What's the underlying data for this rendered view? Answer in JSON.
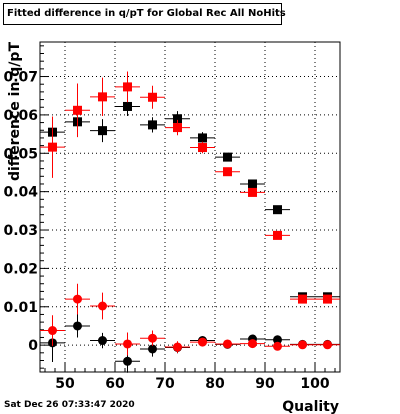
{
  "title": "Fitted difference in q/pT for Global Rec All NoHits",
  "date_stamp": "Sat Dec 26 07:33:47 2020",
  "colors": {
    "series_a": "#000000",
    "series_b": "#ff0000"
  },
  "chart_data": {
    "type": "scatter",
    "title": "Fitted difference in q/pT for Global Rec All NoHits",
    "xlabel": "Quality",
    "ylabel": "difference in q/pT",
    "xlim": [
      45,
      105
    ],
    "ylim": [
      -0.007,
      0.079
    ],
    "x_ticks": [
      50,
      60,
      70,
      80,
      90,
      100
    ],
    "y_ticks": [
      0,
      0.01,
      0.02,
      0.03,
      0.04,
      0.05,
      0.06,
      0.07
    ],
    "y_tick_labels": [
      "0",
      "0.01",
      "0.02",
      "0.03",
      "0.04",
      "0.05",
      "0.06",
      "0.07"
    ],
    "grid": true,
    "series": [
      {
        "marker": "square",
        "color": "#000000",
        "x_err": 2.5,
        "x": [
          47.5,
          52.5,
          57.5,
          62.5,
          67.5,
          72.5,
          77.5,
          82.5,
          87.5,
          92.5,
          97.5,
          102.5
        ],
        "y": [
          0.0555,
          0.0582,
          0.0559,
          0.0622,
          0.0574,
          0.059,
          0.054,
          0.049,
          0.042,
          0.0353,
          0.0126,
          0.0126
        ],
        "y_err": [
          0.003,
          0.003,
          0.003,
          0.0025,
          0.002,
          0.002,
          0.0015,
          0.001,
          0.001,
          0.0008,
          0.0005,
          0.0005
        ]
      },
      {
        "marker": "square",
        "color": "#ff0000",
        "x_err": 2.5,
        "x": [
          47.5,
          52.5,
          57.5,
          62.5,
          67.5,
          72.5,
          77.5,
          82.5,
          87.5,
          92.5,
          97.5,
          102.5
        ],
        "y": [
          0.0516,
          0.0612,
          0.0647,
          0.0673,
          0.0646,
          0.0567,
          0.0515,
          0.0452,
          0.0398,
          0.0286,
          0.012,
          0.012
        ],
        "y_err": [
          0.008,
          0.007,
          0.005,
          0.004,
          0.003,
          0.002,
          0.0015,
          0.001,
          0.001,
          0.0008,
          0.0005,
          0.0005
        ]
      },
      {
        "marker": "circle",
        "color": "#000000",
        "x_err": 2.5,
        "x": [
          47.5,
          52.5,
          57.5,
          62.5,
          67.5,
          72.5,
          77.5,
          82.5,
          87.5,
          92.5,
          97.5,
          102.5
        ],
        "y": [
          0.0006,
          0.005,
          0.0012,
          -0.0042,
          -0.001,
          -0.0006,
          0.0012,
          0.0002,
          0.0016,
          0.0014,
          0.0002,
          0.0002
        ],
        "y_err": [
          0.005,
          0.003,
          0.002,
          0.003,
          0.002,
          0.0015,
          0.001,
          0.0008,
          0.0008,
          0.0008,
          0.0005,
          0.0005
        ]
      },
      {
        "marker": "circle",
        "color": "#ff0000",
        "x_err": 2.5,
        "x": [
          47.5,
          52.5,
          57.5,
          62.5,
          67.5,
          72.5,
          77.5,
          82.5,
          87.5,
          92.5,
          97.5,
          102.5
        ],
        "y": [
          0.0038,
          0.012,
          0.0102,
          0.0003,
          0.0018,
          -0.0005,
          0.0008,
          0.0003,
          0.0004,
          -0.0003,
          0.0001,
          0.0001
        ],
        "y_err": [
          0.004,
          0.004,
          0.0035,
          0.003,
          0.002,
          0.0015,
          0.001,
          0.0008,
          0.0008,
          0.0008,
          0.0005,
          0.0005
        ]
      }
    ]
  }
}
